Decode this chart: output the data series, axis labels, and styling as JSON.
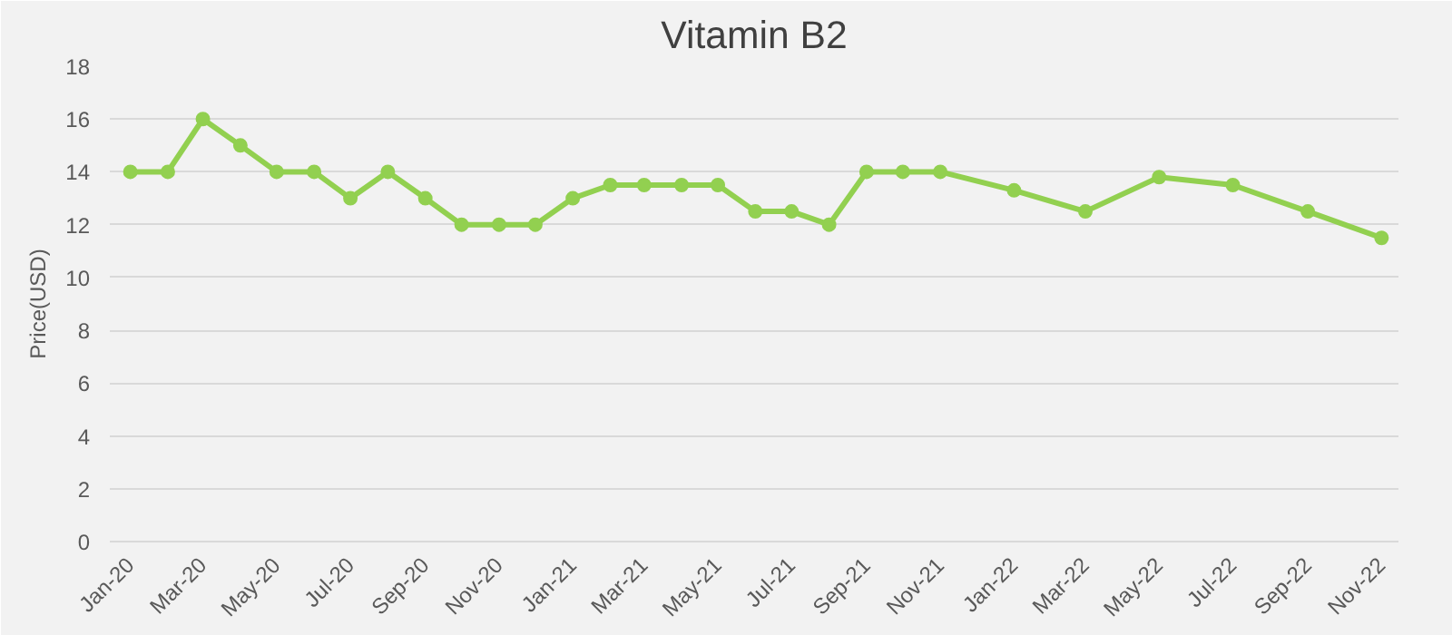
{
  "chart_data": {
    "type": "line",
    "title": "Vitamin B2",
    "ylabel": "Price(USD)",
    "x": [
      "2020-01",
      "2020-02",
      "2020-03",
      "2020-04",
      "2020-05",
      "2020-06",
      "2020-07",
      "2020-08",
      "2020-09",
      "2020-10",
      "2020-11",
      "2020-12",
      "2021-01",
      "2021-02",
      "2021-03",
      "2021-04",
      "2021-05",
      "2021-06",
      "2021-07",
      "2021-08",
      "2021-09",
      "2021-10",
      "2021-11",
      "2022-01",
      "2022-03",
      "2022-05",
      "2022-07",
      "2022-09",
      "2022-11"
    ],
    "series": [
      {
        "color": "#92d050",
        "values": [
          14,
          14,
          16,
          15,
          14,
          14,
          13,
          14,
          13,
          12,
          12,
          12,
          13,
          13.5,
          13.5,
          13.5,
          13.5,
          12.5,
          12.5,
          12,
          14,
          14,
          14,
          13.3,
          12.5,
          13.8,
          13.5,
          12.5,
          11.5
        ]
      }
    ],
    "xticks": [
      {
        "value": "2020-01",
        "label": "Jan-20"
      },
      {
        "value": "2020-03",
        "label": "Mar-20"
      },
      {
        "value": "2020-05",
        "label": "May-20"
      },
      {
        "value": "2020-07",
        "label": "Jul-20"
      },
      {
        "value": "2020-09",
        "label": "Sep-20"
      },
      {
        "value": "2020-11",
        "label": "Nov-20"
      },
      {
        "value": "2021-01",
        "label": "Jan-21"
      },
      {
        "value": "2021-03",
        "label": "Mar-21"
      },
      {
        "value": "2021-05",
        "label": "May-21"
      },
      {
        "value": "2021-07",
        "label": "Jul-21"
      },
      {
        "value": "2021-09",
        "label": "Sep-21"
      },
      {
        "value": "2021-11",
        "label": "Nov-21"
      },
      {
        "value": "2022-01",
        "label": "Jan-22"
      },
      {
        "value": "2022-03",
        "label": "Mar-22"
      },
      {
        "value": "2022-05",
        "label": "May-22"
      },
      {
        "value": "2022-07",
        "label": "Jul-22"
      },
      {
        "value": "2022-09",
        "label": "Sep-22"
      },
      {
        "value": "2022-11",
        "label": "Nov-22"
      }
    ],
    "xlim": [
      "2019-12-15",
      "2022-11-15"
    ],
    "ylim": [
      0,
      18
    ],
    "yticks": [
      0,
      2,
      4,
      6,
      8,
      10,
      12,
      14,
      16,
      18
    ],
    "grid": "y",
    "marker": "circle"
  }
}
